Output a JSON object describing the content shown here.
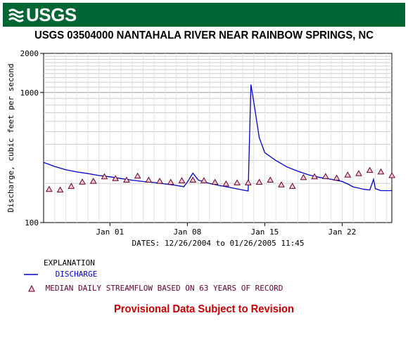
{
  "header": {
    "logo_text": "USGS",
    "banner_color": "#006633"
  },
  "title": "USGS 03504000 NANTAHALA RIVER NEAR RAINBOW SPRINGS, NC",
  "legend": {
    "heading": "EXPLANATION",
    "discharge_label": "DISCHARGE",
    "median_label": "MEDIAN DAILY STREAMFLOW BASED ON 63 YEARS OF RECORD"
  },
  "footer": {
    "provisional": "Provisional Data Subject to Revision"
  },
  "chart_data": {
    "type": "line",
    "title": "USGS 03504000 NANTAHALA RIVER NEAR RAINBOW SPRINGS, NC",
    "xlabel": "DATES: 12/26/2004 to 01/26/2005 11:45",
    "ylabel": "Discharge, cubic feet per second",
    "y_scale": "log",
    "ylim": [
      100,
      2000
    ],
    "y_ticks": [
      100,
      1000,
      2000
    ],
    "y_tick_labels": [
      "100",
      "1000",
      "2000"
    ],
    "xlim": [
      "2004-12-26",
      "2005-01-26 11:45"
    ],
    "x_ticks": [
      "2005-01-01",
      "2005-01-08",
      "2005-01-15",
      "2005-01-22"
    ],
    "x_tick_labels": [
      "Jan 01",
      "Jan 08",
      "Jan 15",
      "Jan 22"
    ],
    "grid": true,
    "series": [
      {
        "name": "DISCHARGE",
        "color": "#0000cc",
        "x": [
          "2004-12-26 00:00",
          "2004-12-27 00:00",
          "2004-12-28 00:00",
          "2004-12-29 00:00",
          "2004-12-30 00:00",
          "2004-12-31 00:00",
          "2005-01-01 00:00",
          "2005-01-02 00:00",
          "2005-01-03 00:00",
          "2005-01-04 00:00",
          "2005-01-05 00:00",
          "2005-01-06 00:00",
          "2005-01-07 00:00",
          "2005-01-07 12:00",
          "2005-01-07 16:00",
          "2005-01-08 00:00",
          "2005-01-08 12:00",
          "2005-01-09 00:00",
          "2005-01-10 00:00",
          "2005-01-11 00:00",
          "2005-01-12 00:00",
          "2005-01-13 00:00",
          "2005-01-13 12:00",
          "2005-01-13 18:00",
          "2005-01-14 00:00",
          "2005-01-14 12:00",
          "2005-01-15 00:00",
          "2005-01-16 00:00",
          "2005-01-17 00:00",
          "2005-01-18 00:00",
          "2005-01-19 00:00",
          "2005-01-20 00:00",
          "2005-01-21 00:00",
          "2005-01-22 00:00",
          "2005-01-22 12:00",
          "2005-01-23 00:00",
          "2005-01-24 00:00",
          "2005-01-24 12:00",
          "2005-01-24 20:00",
          "2005-01-25 00:00",
          "2005-01-25 12:00",
          "2005-01-26 11:45"
        ],
        "values": [
          290,
          270,
          255,
          245,
          238,
          230,
          225,
          218,
          212,
          207,
          203,
          198,
          193,
          190,
          188,
          205,
          240,
          212,
          200,
          192,
          185,
          178,
          175,
          1150,
          850,
          450,
          345,
          300,
          268,
          248,
          232,
          222,
          215,
          207,
          198,
          188,
          180,
          178,
          215,
          182,
          176,
          176
        ]
      },
      {
        "name": "MEDIAN DAILY STREAMFLOW BASED ON 63 YEARS OF RECORD",
        "color": "#660033",
        "marker": "triangle",
        "x": [
          "2004-12-26",
          "2004-12-27",
          "2004-12-28",
          "2004-12-29",
          "2004-12-30",
          "2004-12-31",
          "2005-01-01",
          "2005-01-02",
          "2005-01-03",
          "2005-01-04",
          "2005-01-05",
          "2005-01-06",
          "2005-01-07",
          "2005-01-08",
          "2005-01-09",
          "2005-01-10",
          "2005-01-11",
          "2005-01-12",
          "2005-01-13",
          "2005-01-14",
          "2005-01-15",
          "2005-01-16",
          "2005-01-17",
          "2005-01-18",
          "2005-01-19",
          "2005-01-20",
          "2005-01-21",
          "2005-01-22",
          "2005-01-23",
          "2005-01-24",
          "2005-01-25",
          "2005-01-26"
        ],
        "values": [
          180,
          178,
          190,
          205,
          208,
          225,
          218,
          212,
          228,
          212,
          208,
          204,
          210,
          212,
          210,
          204,
          198,
          202,
          202,
          204,
          212,
          195,
          190,
          222,
          225,
          226,
          220,
          232,
          238,
          252,
          245,
          230
        ]
      }
    ]
  }
}
